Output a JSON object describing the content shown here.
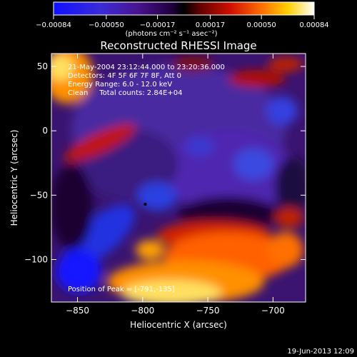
{
  "chart_data": {
    "type": "heatmap",
    "title": "Reconstructed RHESSI Image",
    "xlabel": "Heliocentric X (arcsec)",
    "ylabel": "Heliocentric Y (arcsec)",
    "xlim": [
      -870,
      -675
    ],
    "ylim": [
      -133,
      60
    ],
    "x_ticks": [
      -850,
      -800,
      -750,
      -700
    ],
    "x_tick_labels": [
      "−850",
      "−800",
      "−750",
      "−700"
    ],
    "y_ticks": [
      50,
      0,
      -50,
      -100
    ],
    "y_tick_labels": [
      "50",
      "0",
      "−50",
      "−100"
    ],
    "colorbar": {
      "min": -0.00084,
      "max": 0.00084,
      "ticks": [
        -0.00084,
        -0.0005,
        -0.00017,
        0.00017,
        0.0005,
        0.00084
      ],
      "tick_labels": [
        "−0.00084",
        "−0.00050",
        "−0.00017",
        "0.00017",
        "0.00050",
        "0.00084"
      ],
      "unit_label": "(photons cm⁻² s⁻¹ asec⁻²)",
      "colors": [
        "#0000ff",
        "#5a2cc0",
        "#4b0082",
        "#000000",
        "#c00000",
        "#ff6000",
        "#ffe000",
        "#ffffff"
      ]
    },
    "info_lines": [
      "21-May-2004 23:12:44.000 to 23:20:36.000",
      "Detectors: 4F 5F 6F 7F 8F, Att 0",
      "Energy Range: 6.0 - 12.0 keV",
      "Clean     Total counts: 2.84E+04"
    ],
    "peak_text": "Position of Peak = [-791,-135]",
    "marker": {
      "x": -798,
      "y": -57
    },
    "date_stamp": "19-Jun-2013 12:09"
  }
}
